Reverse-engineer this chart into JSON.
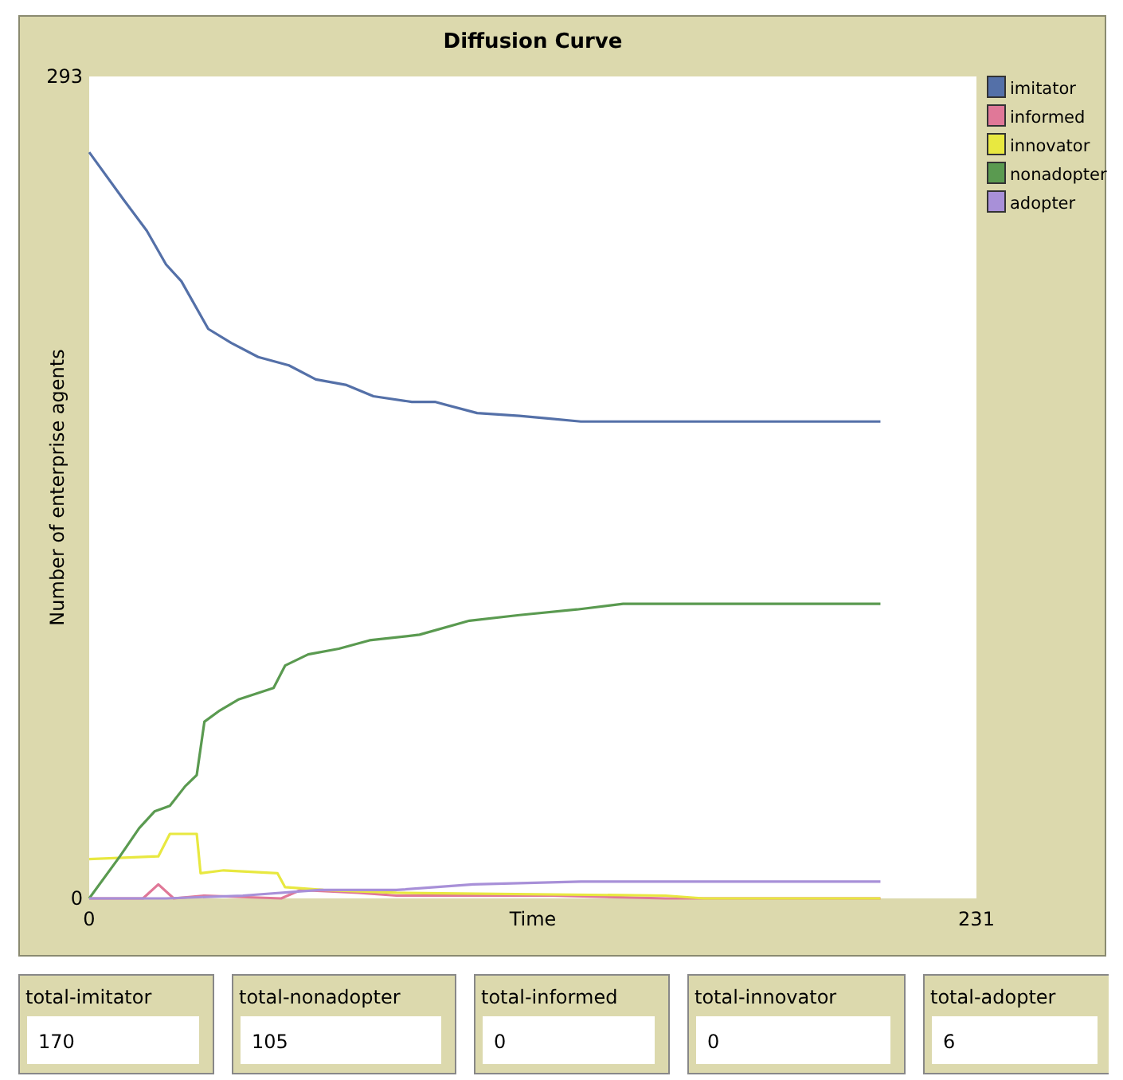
{
  "chart_data": {
    "type": "line",
    "title": "Diffusion Curve",
    "xlabel": "Time",
    "ylabel": "Number of enterprise agents",
    "xlim": [
      0,
      231
    ],
    "xticks": [
      0,
      231
    ],
    "ylim": [
      0,
      293
    ],
    "yticks": [
      0,
      293
    ],
    "grid": false,
    "legend": "right",
    "series": [
      {
        "name": "imitator",
        "color": "#5470a8",
        "x": [
          0,
          9,
          15,
          20,
          24,
          31,
          37,
          44,
          52,
          59,
          67,
          74,
          84,
          90,
          101,
          112,
          120,
          128,
          206
        ],
        "values": [
          266,
          249,
          238,
          226,
          220,
          203,
          198,
          193,
          190,
          185,
          183,
          179,
          177,
          177,
          173,
          172,
          171,
          170,
          170
        ]
      },
      {
        "name": "informed",
        "color": "#e07898",
        "x": [
          0,
          14,
          18,
          22,
          30,
          50,
          55,
          70,
          80,
          120,
          150,
          206
        ],
        "values": [
          0,
          0,
          5,
          0,
          1,
          0,
          3,
          2,
          1,
          1,
          0,
          0
        ]
      },
      {
        "name": "innovator",
        "color": "#e8e840",
        "x": [
          0,
          18,
          21,
          28,
          29,
          35,
          49,
          51,
          61,
          80,
          150,
          160,
          206
        ],
        "values": [
          14,
          15,
          23,
          23,
          9,
          10,
          9,
          4,
          3,
          2,
          1,
          0,
          0
        ]
      },
      {
        "name": "nonadopter",
        "color": "#5a9a50",
        "x": [
          0,
          8,
          13,
          17,
          21,
          25,
          28,
          30,
          34,
          39,
          48,
          51,
          57,
          65,
          73,
          86,
          99,
          112,
          127,
          139,
          206
        ],
        "values": [
          0,
          15,
          25,
          31,
          33,
          40,
          44,
          63,
          67,
          71,
          75,
          83,
          87,
          89,
          92,
          94,
          99,
          101,
          103,
          105,
          105
        ]
      },
      {
        "name": "adopter",
        "color": "#a890d8",
        "x": [
          0,
          20,
          40,
          60,
          80,
          100,
          128,
          206
        ],
        "values": [
          0,
          0,
          1,
          3,
          3,
          5,
          6,
          6
        ]
      }
    ],
    "annotations": [
      "total-imitator",
      "170",
      "total-nonadopter",
      "105",
      "total-informed",
      "0",
      "total-innovator",
      "0",
      "total-adopter",
      "6"
    ]
  }
}
